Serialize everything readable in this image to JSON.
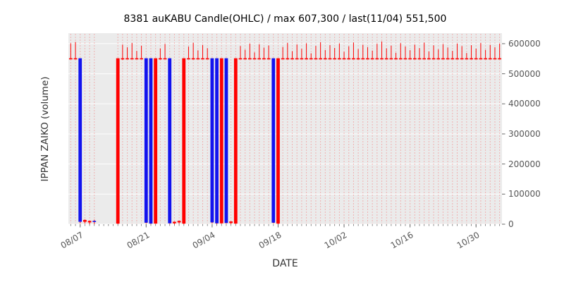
{
  "chart_data": {
    "type": "candlestick-ohlc",
    "title": "8381 auKABU Candle(OHLC) / max 607,300 / last(11/04) 551,500",
    "xlabel": "DATE",
    "ylabel": "IPPAN ZAIKO (volume)",
    "ylim": [
      0,
      635000
    ],
    "grid": true,
    "legend": "none",
    "max_value": 607300,
    "last_date": "11/04",
    "last_value": 551500,
    "yticks": [
      0,
      100000,
      200000,
      300000,
      400000,
      500000,
      600000
    ],
    "xtick_labels": [
      "08/07",
      "08/21",
      "09/04",
      "09/18",
      "10/02",
      "10/16",
      "10/30"
    ],
    "xtick_indices": [
      2,
      16,
      30,
      44,
      58,
      72,
      86
    ],
    "colors": {
      "up": "#ff0000",
      "down": "#1212ee",
      "grid": "rgba(255,0,0,0.25)",
      "plot_bg": "#ebebeb",
      "tick": "#666666",
      "title": "#000000"
    },
    "candles": [
      [
        "08/05",
        551500,
        601000,
        551500,
        551500
      ],
      [
        "08/06",
        551500,
        605500,
        548000,
        551500
      ],
      [
        "08/07",
        551500,
        551500,
        3000,
        8000
      ],
      [
        "08/08",
        8000,
        16000,
        2000,
        14000
      ],
      [
        "08/09",
        6000,
        12000,
        0,
        11000
      ],
      [
        "08/10",
        11000,
        15000,
        500,
        9000
      ],
      [
        "08/11",
        null,
        null,
        null,
        null
      ],
      [
        "08/12",
        null,
        null,
        null,
        null
      ],
      [
        "08/13",
        null,
        null,
        null,
        null
      ],
      [
        "08/14",
        null,
        null,
        null,
        null
      ],
      [
        "08/15",
        2000,
        551500,
        0,
        551500
      ],
      [
        "08/16",
        551500,
        597000,
        546000,
        551500
      ],
      [
        "08/17",
        551500,
        588000,
        551500,
        551500
      ],
      [
        "08/18",
        551500,
        602000,
        551500,
        551500
      ],
      [
        "08/19",
        551500,
        576000,
        549000,
        551500
      ],
      [
        "08/20",
        551500,
        593000,
        551500,
        551500
      ],
      [
        "08/21",
        551500,
        551500,
        2000,
        5000
      ],
      [
        "08/22",
        551500,
        551500,
        0,
        2000
      ],
      [
        "08/23",
        2000,
        551500,
        1000,
        551500
      ],
      [
        "08/24",
        551500,
        584000,
        547000,
        551500
      ],
      [
        "08/25",
        551500,
        599000,
        551500,
        551500
      ],
      [
        "08/26",
        551500,
        551500,
        500,
        3000
      ],
      [
        "08/27",
        3000,
        9000,
        0,
        8000
      ],
      [
        "08/28",
        6000,
        12000,
        1000,
        11000
      ],
      [
        "08/29",
        2000,
        551500,
        0,
        551500
      ],
      [
        "08/30",
        551500,
        590000,
        551500,
        551500
      ],
      [
        "08/31",
        551500,
        603000,
        547000,
        551500
      ],
      [
        "09/01",
        551500,
        578000,
        551500,
        551500
      ],
      [
        "09/02",
        551500,
        596000,
        551500,
        551500
      ],
      [
        "09/03",
        551500,
        585000,
        551500,
        551500
      ],
      [
        "09/04",
        551500,
        551500,
        2000,
        6000
      ],
      [
        "09/05",
        551500,
        551500,
        0,
        3000
      ],
      [
        "09/06",
        3000,
        551500,
        1000,
        551500
      ],
      [
        "09/07",
        551500,
        551500,
        1500,
        4000
      ],
      [
        "09/08",
        4000,
        10000,
        0,
        9000
      ],
      [
        "09/09",
        2000,
        551500,
        500,
        551500
      ],
      [
        "09/10",
        551500,
        592000,
        551500,
        551500
      ],
      [
        "09/11",
        551500,
        580000,
        548000,
        551500
      ],
      [
        "09/12",
        551500,
        600000,
        551500,
        551500
      ],
      [
        "09/13",
        551500,
        571000,
        551500,
        551500
      ],
      [
        "09/14",
        551500,
        598000,
        551500,
        551500
      ],
      [
        "09/15",
        551500,
        587000,
        549000,
        551500
      ],
      [
        "09/16",
        551500,
        594000,
        551500,
        551500
      ],
      [
        "09/17",
        551500,
        551500,
        2500,
        5000
      ],
      [
        "09/18",
        2000,
        551500,
        0,
        551500
      ],
      [
        "09/19",
        551500,
        589000,
        551500,
        551500
      ],
      [
        "09/20",
        551500,
        602500,
        547500,
        551500
      ],
      [
        "09/21",
        551500,
        575000,
        551500,
        551500
      ],
      [
        "09/22",
        551500,
        597500,
        551500,
        551500
      ],
      [
        "09/23",
        551500,
        583000,
        551500,
        551500
      ],
      [
        "09/24",
        551500,
        601000,
        549500,
        551500
      ],
      [
        "09/25",
        551500,
        568000,
        551500,
        551500
      ],
      [
        "09/26",
        551500,
        592500,
        551500,
        551500
      ],
      [
        "09/27",
        551500,
        605000,
        551500,
        551500
      ],
      [
        "09/28",
        551500,
        579000,
        548500,
        551500
      ],
      [
        "09/29",
        551500,
        595500,
        551500,
        551500
      ],
      [
        "09/30",
        551500,
        586000,
        551500,
        551500
      ],
      [
        "10/01",
        551500,
        600500,
        551500,
        551500
      ],
      [
        "10/02",
        551500,
        573000,
        549000,
        551500
      ],
      [
        "10/03",
        551500,
        591000,
        551500,
        551500
      ],
      [
        "10/04",
        551500,
        604000,
        551500,
        551500
      ],
      [
        "10/05",
        551500,
        582000,
        547000,
        551500
      ],
      [
        "10/06",
        551500,
        596500,
        551500,
        551500
      ],
      [
        "10/07",
        551500,
        588500,
        551500,
        551500
      ],
      [
        "10/08",
        551500,
        577000,
        551500,
        551500
      ],
      [
        "10/09",
        551500,
        599500,
        548000,
        551500
      ],
      [
        "10/10",
        551500,
        607300,
        551500,
        551500
      ],
      [
        "10/11",
        551500,
        584500,
        551500,
        551500
      ],
      [
        "10/12",
        551500,
        593500,
        551500,
        551500
      ],
      [
        "10/13",
        551500,
        570000,
        549000,
        551500
      ],
      [
        "10/14",
        551500,
        601500,
        551500,
        551500
      ],
      [
        "10/15",
        551500,
        590500,
        551500,
        551500
      ],
      [
        "10/16",
        551500,
        578500,
        551500,
        551500
      ],
      [
        "10/17",
        551500,
        597000,
        547500,
        551500
      ],
      [
        "10/18",
        551500,
        585500,
        551500,
        551500
      ],
      [
        "10/19",
        551500,
        603500,
        551500,
        551500
      ],
      [
        "10/20",
        551500,
        574000,
        551500,
        551500
      ],
      [
        "10/21",
        551500,
        594500,
        548500,
        551500
      ],
      [
        "10/22",
        551500,
        581000,
        551500,
        551500
      ],
      [
        "10/23",
        551500,
        598500,
        551500,
        551500
      ],
      [
        "10/24",
        551500,
        587500,
        551500,
        551500
      ],
      [
        "10/25",
        551500,
        576000,
        549500,
        551500
      ],
      [
        "10/26",
        551500,
        600000,
        551500,
        551500
      ],
      [
        "10/27",
        551500,
        591500,
        551500,
        551500
      ],
      [
        "10/28",
        551500,
        569000,
        551500,
        551500
      ],
      [
        "10/29",
        551500,
        595000,
        548000,
        551500
      ],
      [
        "10/30",
        551500,
        583500,
        551500,
        551500
      ],
      [
        "10/31",
        551500,
        602000,
        551500,
        551500
      ],
      [
        "11/01",
        551500,
        579500,
        551500,
        551500
      ],
      [
        "11/02",
        551500,
        596000,
        549000,
        551500
      ],
      [
        "11/03",
        551500,
        588000,
        551500,
        551500
      ],
      [
        "11/04",
        551500,
        600000,
        551500,
        551500
      ]
    ]
  }
}
